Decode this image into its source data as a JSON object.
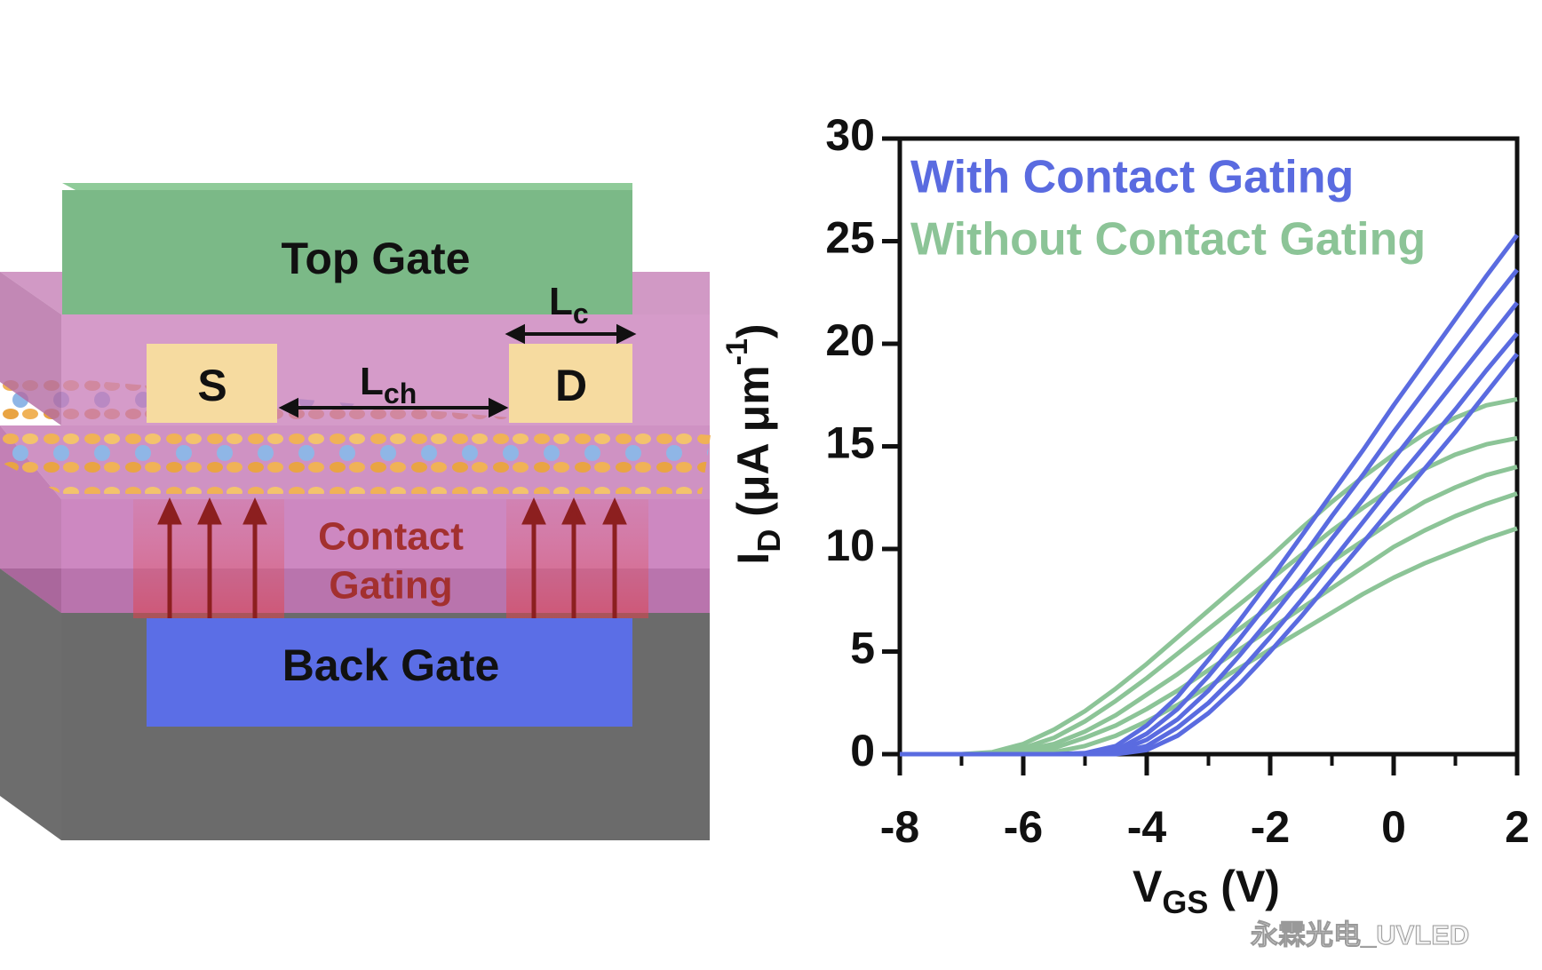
{
  "diagram": {
    "top_gate": "Top Gate",
    "source": "S",
    "drain": "D",
    "channel_length": {
      "main": "L",
      "sub": "ch"
    },
    "contact_length": {
      "main": "L",
      "sub": "c"
    },
    "contact_gating": [
      "Contact",
      "Gating"
    ],
    "back_gate": "Back Gate"
  },
  "watermark": "永霖光电_UVLED",
  "chart_data": {
    "type": "line",
    "xlabel": {
      "main": "V",
      "sub": "GS",
      "rest": " (V)"
    },
    "ylabel": {
      "main": "I",
      "sub": "D",
      "rest": " (μA μm",
      "sup": "-1",
      "end": ")"
    },
    "x": [
      -8,
      -7.5,
      -7,
      -6.5,
      -6,
      -5.5,
      -5,
      -4.5,
      -4,
      -3.5,
      -3,
      -2.5,
      -2,
      -1.5,
      -1,
      -0.5,
      0,
      0.5,
      1,
      1.5,
      2
    ],
    "series": [
      {
        "name": "With Contact Gating",
        "color": "#5a6be0",
        "curves": [
          [
            0,
            0,
            0,
            0,
            0,
            0,
            0.05,
            0.4,
            1.4,
            2.8,
            4.6,
            6.5,
            8.5,
            10.6,
            12.7,
            14.8,
            17,
            19.1,
            21.2,
            23.3,
            25.3
          ],
          [
            0,
            0,
            0,
            0,
            0,
            0,
            0,
            0.2,
            1.0,
            2.2,
            3.8,
            5.6,
            7.5,
            9.5,
            11.6,
            13.6,
            15.7,
            17.7,
            19.7,
            21.7,
            23.6
          ],
          [
            0,
            0,
            0,
            0,
            0,
            0,
            0,
            0.1,
            0.7,
            1.7,
            3.1,
            4.8,
            6.6,
            8.5,
            10.5,
            12.4,
            14.4,
            16.3,
            18.2,
            20.1,
            22
          ],
          [
            0,
            0,
            0,
            0,
            0,
            0,
            0,
            0.05,
            0.4,
            1.3,
            2.5,
            4.0,
            5.7,
            7.5,
            9.4,
            11.3,
            13.2,
            15,
            16.8,
            18.7,
            20.5
          ],
          [
            0,
            0,
            0,
            0,
            0,
            0,
            0,
            0,
            0.2,
            0.9,
            2.0,
            3.4,
            5.0,
            6.7,
            8.5,
            10.3,
            12.1,
            13.9,
            15.7,
            17.6,
            19.5
          ]
        ]
      },
      {
        "name": "Without Contact Gating",
        "color": "#8cc497",
        "curves": [
          [
            0,
            0,
            0,
            0.1,
            0.5,
            1.2,
            2.1,
            3.2,
            4.4,
            5.7,
            7.0,
            8.3,
            9.6,
            11.0,
            12.3,
            13.5,
            14.6,
            15.6,
            16.4,
            17,
            17.3
          ],
          [
            0,
            0,
            0,
            0.05,
            0.3,
            0.8,
            1.6,
            2.6,
            3.7,
            4.9,
            6.1,
            7.3,
            8.5,
            9.7,
            10.9,
            12,
            13,
            13.9,
            14.6,
            15.1,
            15.4
          ],
          [
            0,
            0,
            0,
            0,
            0.2,
            0.5,
            1.1,
            1.9,
            2.9,
            3.9,
            5.0,
            6.1,
            7.2,
            8.3,
            9.4,
            10.4,
            11.4,
            12.3,
            13,
            13.6,
            14
          ],
          [
            0,
            0,
            0,
            0,
            0.1,
            0.3,
            0.8,
            1.4,
            2.2,
            3.1,
            4.1,
            5.1,
            6.1,
            7.1,
            8.1,
            9.1,
            10.1,
            10.9,
            11.6,
            12.2,
            12.7
          ],
          [
            0,
            0,
            0,
            0,
            0,
            0.1,
            0.4,
            0.9,
            1.6,
            2.4,
            3.3,
            4.2,
            5.1,
            6,
            6.9,
            7.8,
            8.6,
            9.3,
            9.9,
            10.5,
            11
          ]
        ]
      }
    ],
    "xlim": [
      -8,
      2
    ],
    "ylim": [
      0,
      30
    ],
    "xticks": [
      -8,
      -6,
      -4,
      -2,
      0,
      2
    ],
    "xminorticks": [
      -7,
      -5,
      -3,
      -1,
      1
    ],
    "yticks": [
      0,
      5,
      10,
      15,
      20,
      25,
      30
    ],
    "legend": "upper left",
    "grid": false
  }
}
